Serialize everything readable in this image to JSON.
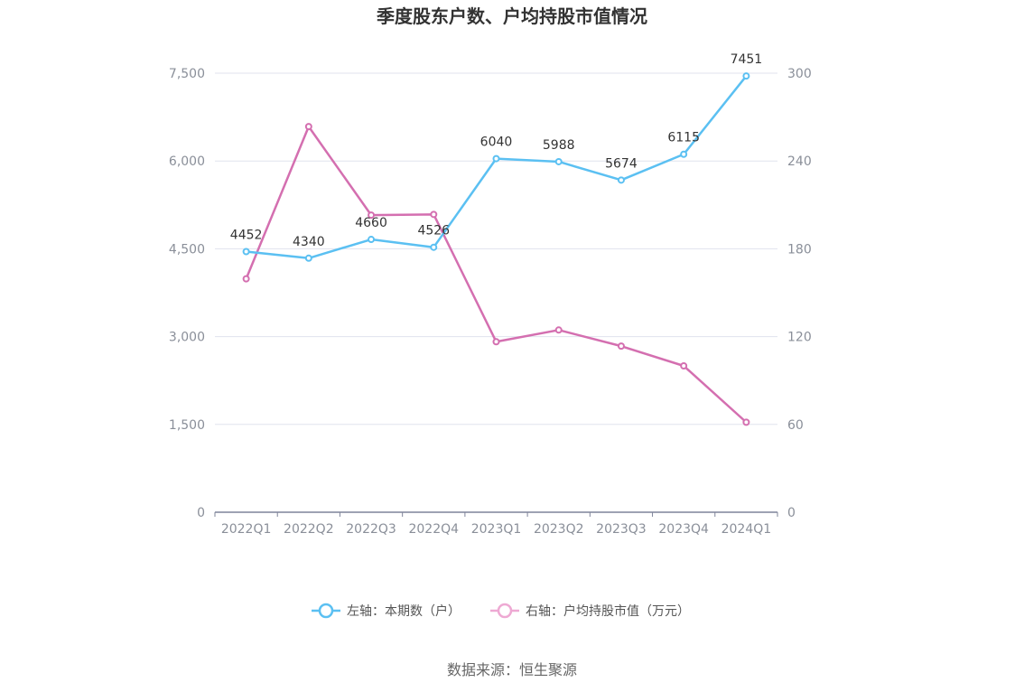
{
  "chart_data": {
    "type": "line",
    "title": "季度股东户数、户均持股市值情况",
    "categories": [
      "2022Q1",
      "2022Q2",
      "2022Q3",
      "2022Q4",
      "2023Q1",
      "2023Q2",
      "2023Q3",
      "2023Q4",
      "2024Q1"
    ],
    "left_axis": {
      "ylim": [
        0,
        7500
      ],
      "ticks": [
        "0",
        "1,500",
        "3,000",
        "4,500",
        "6,000",
        "7,500"
      ]
    },
    "right_axis": {
      "ylim": [
        0,
        300
      ],
      "ticks": [
        "0",
        "60",
        "120",
        "180",
        "240",
        "300"
      ]
    },
    "grid": true,
    "legend_position": "bottom",
    "series": [
      {
        "name": "左轴：本期数（户）",
        "axis": "left",
        "color": "#5bc0f2",
        "values": [
          4452,
          4340,
          4660,
          4526,
          6040,
          5988,
          5674,
          6115,
          7451
        ],
        "labels": [
          "4452",
          "4340",
          "4660",
          "4526",
          "6040",
          "5988",
          "5674",
          "6115",
          "7451"
        ]
      },
      {
        "name": "右轴：户均持股市值（万元）",
        "axis": "right",
        "color": "#d46fb0",
        "legend_color": "#eea9d3",
        "values": [
          159.5,
          263.5,
          203,
          203.5,
          116.5,
          124.5,
          113.5,
          100,
          61.5
        ]
      }
    ]
  },
  "source": "数据来源：恒生聚源"
}
